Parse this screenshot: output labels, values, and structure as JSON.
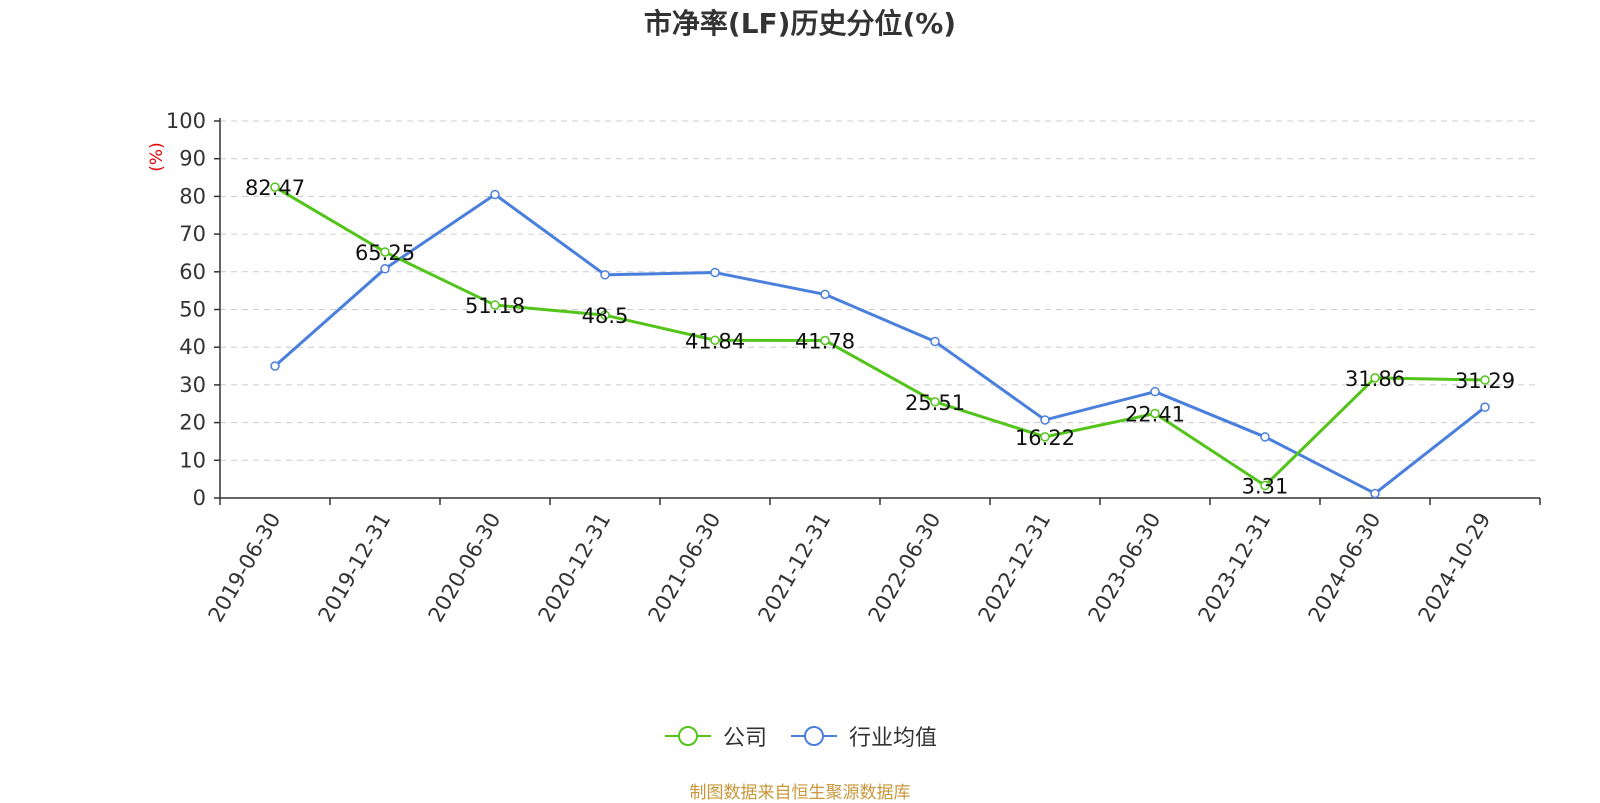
{
  "chart_data": {
    "type": "line",
    "title": "市净率(LF)历史分位(%)",
    "ylabel": "(%)",
    "xlabel": "",
    "ylim": [
      0,
      100
    ],
    "yticks": [
      0,
      10,
      20,
      30,
      40,
      50,
      60,
      70,
      80,
      90,
      100
    ],
    "grid": true,
    "legend_position": "bottom",
    "categories": [
      "2019-06-30",
      "2019-12-31",
      "2020-06-30",
      "2020-12-31",
      "2021-06-30",
      "2021-12-31",
      "2022-06-30",
      "2022-12-31",
      "2023-06-30",
      "2023-12-31",
      "2024-06-30",
      "2024-10-29"
    ],
    "series": [
      {
        "name": "公司",
        "color": "#52c41a",
        "show_labels": true,
        "values": [
          82.47,
          65.25,
          51.18,
          48.5,
          41.84,
          41.78,
          25.51,
          16.22,
          22.41,
          3.31,
          31.86,
          31.29
        ],
        "labels": [
          "82.47",
          "65.25",
          "51.18",
          "48.5",
          "41.84",
          "41.78",
          "25.51",
          "16.22",
          "22.41",
          "3.31",
          "31.86",
          "31.29"
        ]
      },
      {
        "name": "行业均值",
        "color": "#4a7fdc",
        "show_labels": false,
        "values": [
          35.0,
          60.8,
          80.5,
          59.2,
          59.8,
          54.0,
          41.5,
          20.7,
          28.2,
          16.2,
          1.2,
          24.1
        ]
      }
    ]
  },
  "source": "制图数据来自恒生聚源数据库",
  "colors": {
    "axis": "#333333",
    "grid": "#cccccc",
    "ylabel": "#e00000",
    "source": "#c9973a"
  }
}
